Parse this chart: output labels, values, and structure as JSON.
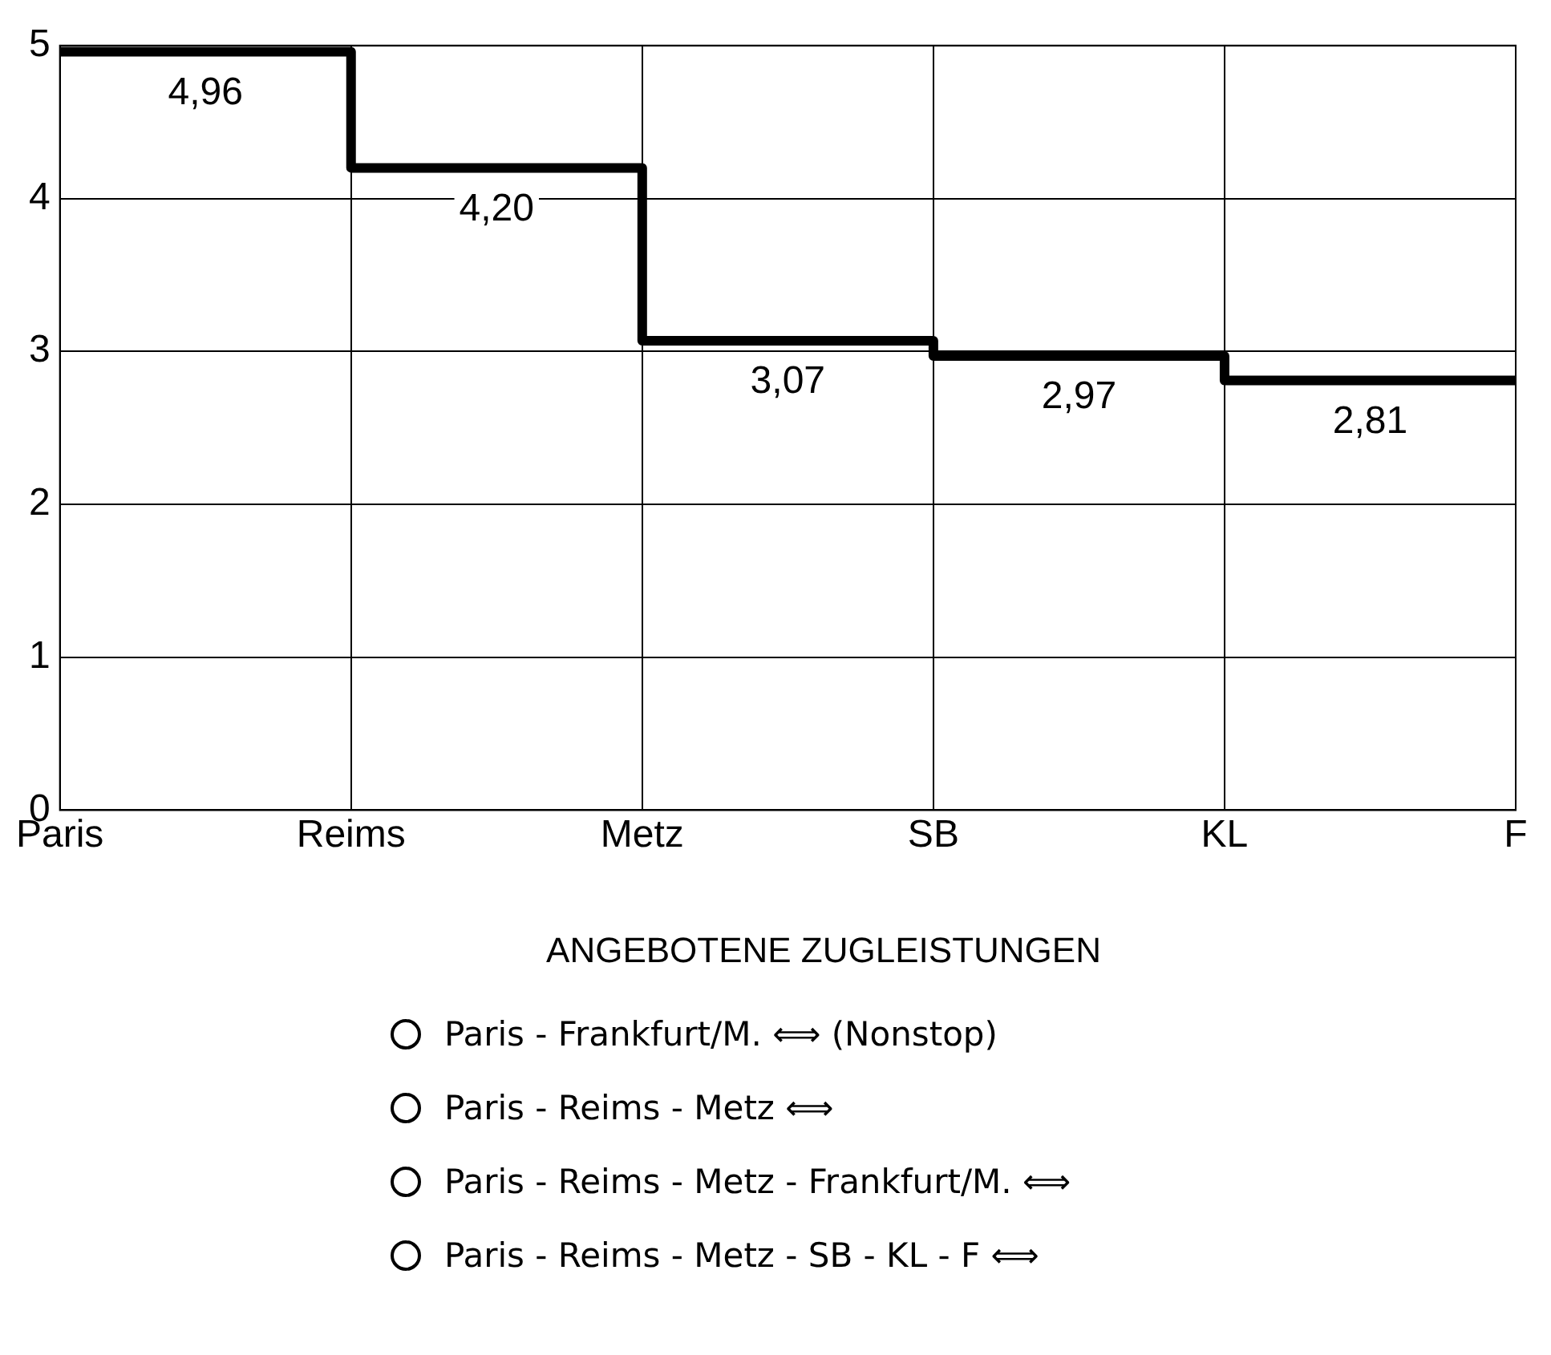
{
  "chart_data": {
    "type": "step",
    "categories": [
      "Paris",
      null,
      "Reims",
      null,
      "Metz",
      null,
      "SB",
      null,
      "KL",
      null,
      "F"
    ],
    "values": [
      4.96,
      4.96,
      null,
      4.2,
      null,
      3.07,
      null,
      2.97,
      null,
      2.81,
      2.81
    ],
    "value_labels": [
      null,
      "4,96",
      null,
      "4,20",
      null,
      "3,07",
      null,
      "2,97",
      null,
      "2,81",
      null
    ],
    "color": "#000000",
    "ylim": [
      0,
      5
    ],
    "yticks": [
      0,
      1,
      2,
      3,
      4,
      5
    ],
    "grid": true,
    "marker": "none",
    "line_style": "solid",
    "annotations": [
      "ANGEBOTENE  ZUGLEISTUNGEN",
      "Paris - Frankfurt/M.  ⟺  (Nonstop)",
      "Paris - Reims - Metz  ⟺",
      "Paris - Reims - Metz - Frankfurt/M.  ⟺",
      "Paris - Reims - Metz - SB - KL - F  ⟺"
    ]
  }
}
